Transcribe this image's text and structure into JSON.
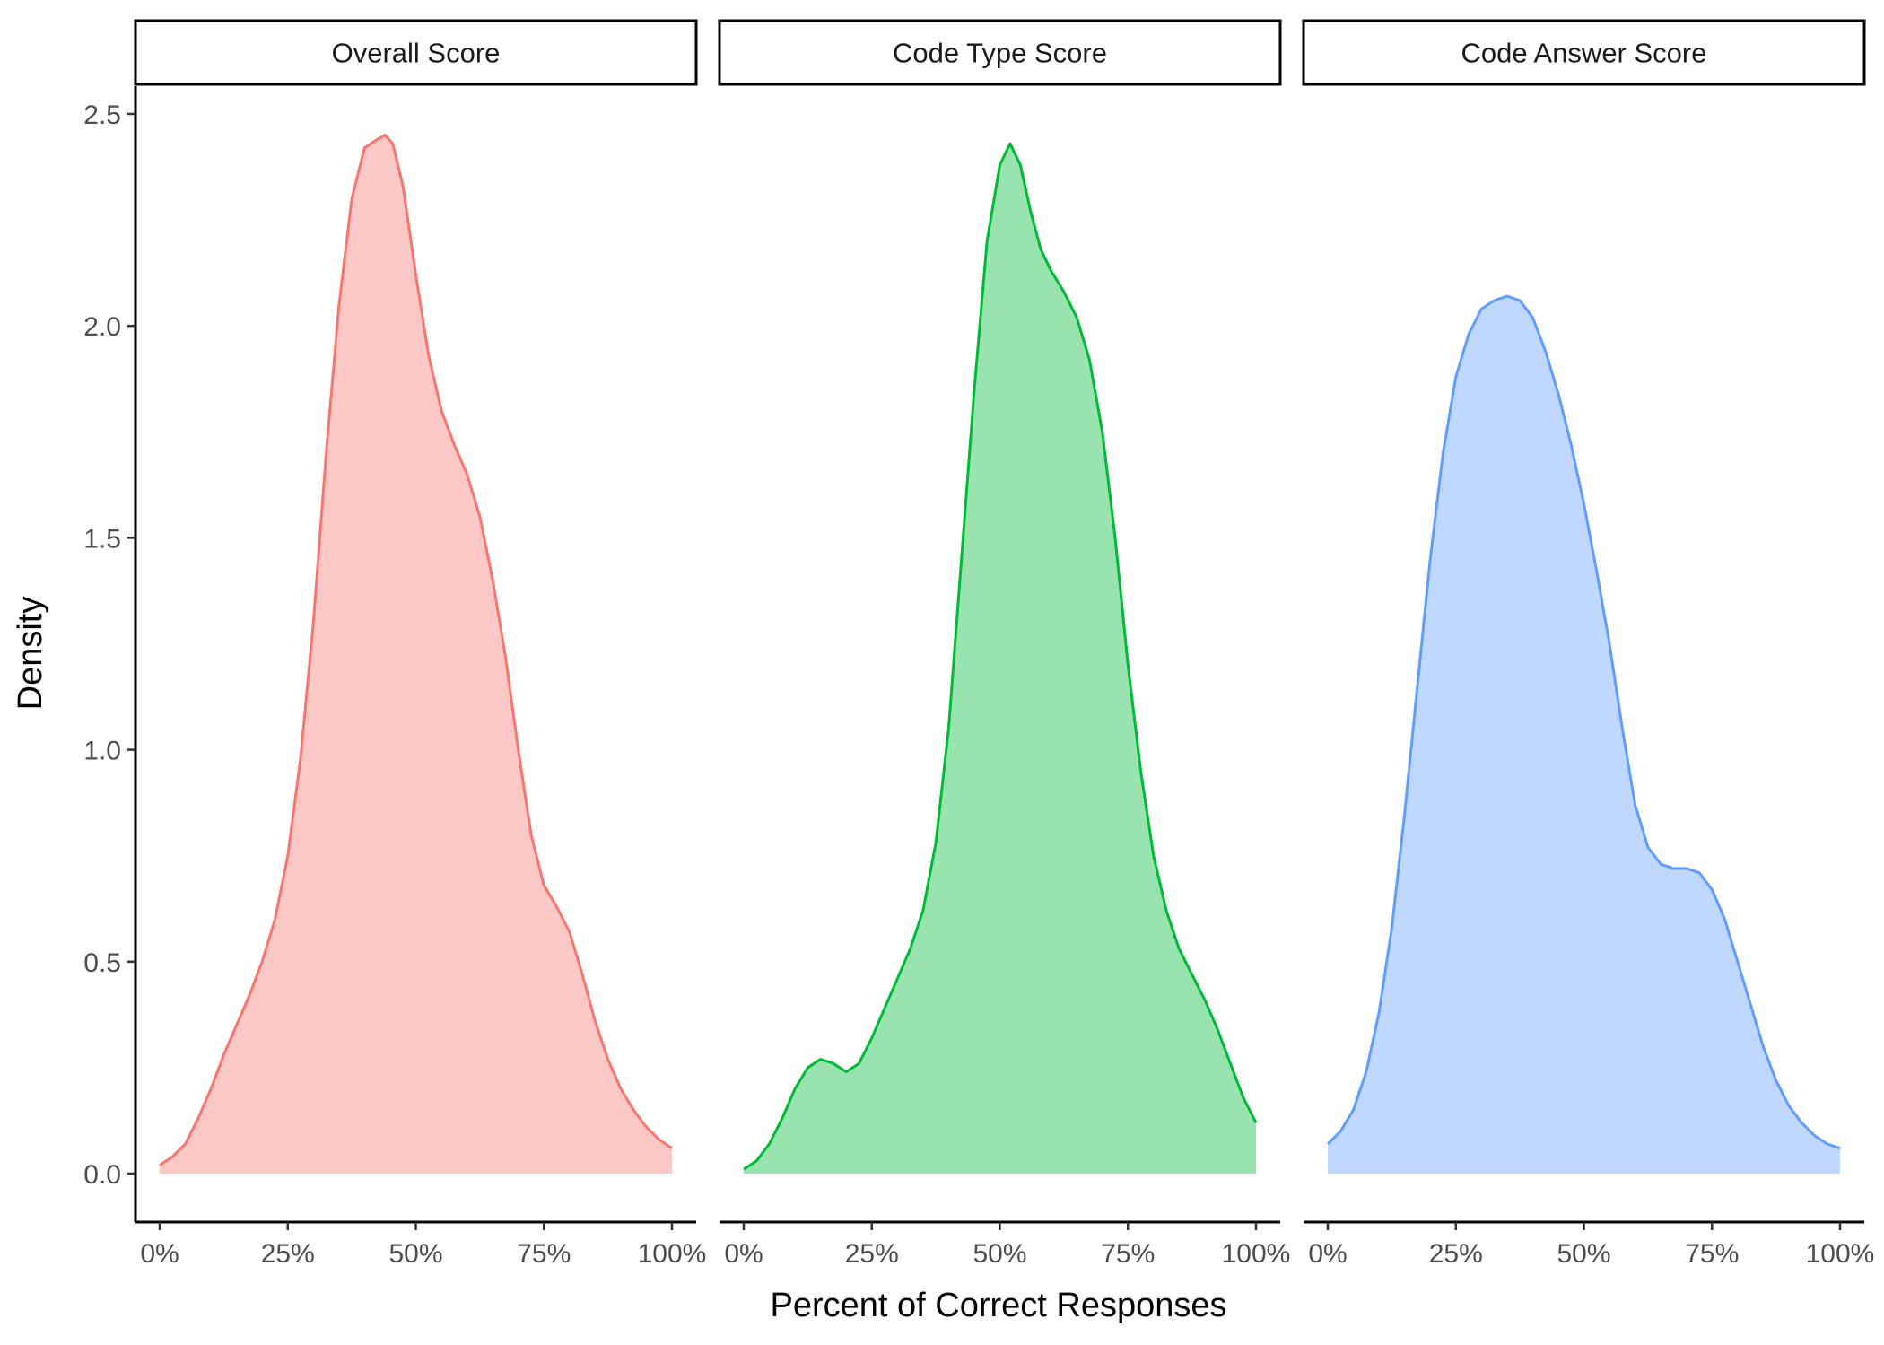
{
  "chart_data": {
    "type": "area",
    "xlabel": "Percent of Correct Responses",
    "ylabel": "Density",
    "xlim": [
      0,
      100
    ],
    "ylim": [
      0,
      2.5
    ],
    "x_ticks": [
      0,
      25,
      50,
      75,
      100
    ],
    "x_tick_labels": [
      "0%",
      "25%",
      "50%",
      "75%",
      "100%"
    ],
    "y_ticks": [
      0,
      0.5,
      1.0,
      1.5,
      2.0,
      2.5
    ],
    "y_tick_labels": [
      "0.0",
      "0.5",
      "1.0",
      "1.5",
      "2.0",
      "2.5"
    ],
    "grid": false,
    "legend": "none",
    "panels": [
      {
        "label": "Overall Score",
        "line_color": "#F8766D",
        "fill_color": "#F8766D",
        "x": [
          0,
          2.5,
          5,
          7.5,
          10,
          12.5,
          15,
          17.5,
          20,
          22.5,
          25,
          27.5,
          30,
          32.5,
          35,
          37.5,
          40,
          42.5,
          44,
          45.5,
          47.5,
          50,
          52.5,
          55,
          57.5,
          60,
          62.5,
          65,
          67.5,
          70,
          72.5,
          75,
          77.5,
          80,
          82.5,
          85,
          87.5,
          90,
          92.5,
          95,
          97.5,
          100
        ],
        "y": [
          0.02,
          0.04,
          0.07,
          0.13,
          0.2,
          0.28,
          0.35,
          0.42,
          0.5,
          0.6,
          0.75,
          0.98,
          1.3,
          1.7,
          2.05,
          2.3,
          2.42,
          2.44,
          2.45,
          2.43,
          2.33,
          2.12,
          1.93,
          1.8,
          1.72,
          1.65,
          1.55,
          1.4,
          1.22,
          1.0,
          0.8,
          0.68,
          0.63,
          0.57,
          0.47,
          0.36,
          0.27,
          0.2,
          0.15,
          0.11,
          0.08,
          0.06
        ]
      },
      {
        "label": "Code Type Score",
        "line_color": "#00BA38",
        "fill_color": "#00BA38",
        "x": [
          0,
          2.5,
          5,
          7.5,
          10,
          12.5,
          15,
          17.5,
          20,
          22.5,
          25,
          27.5,
          30,
          32.5,
          35,
          37.5,
          40,
          42.5,
          45,
          47.5,
          50,
          52,
          54,
          56,
          58,
          60,
          62.5,
          65,
          67.5,
          70,
          72.5,
          75,
          77.5,
          80,
          82.5,
          85,
          87.5,
          90,
          92.5,
          95,
          97.5,
          100
        ],
        "y": [
          0.01,
          0.03,
          0.07,
          0.13,
          0.2,
          0.25,
          0.27,
          0.26,
          0.24,
          0.26,
          0.32,
          0.39,
          0.46,
          0.53,
          0.62,
          0.78,
          1.05,
          1.45,
          1.85,
          2.2,
          2.38,
          2.43,
          2.38,
          2.27,
          2.18,
          2.13,
          2.08,
          2.02,
          1.92,
          1.75,
          1.5,
          1.2,
          0.95,
          0.75,
          0.62,
          0.53,
          0.47,
          0.41,
          0.34,
          0.26,
          0.18,
          0.12
        ]
      },
      {
        "label": "Code Answer Score",
        "line_color": "#619CFF",
        "fill_color": "#619CFF",
        "x": [
          0,
          2.5,
          5,
          7.5,
          10,
          12.5,
          15,
          17.5,
          20,
          22.5,
          25,
          27.5,
          30,
          32.5,
          35,
          37.5,
          40,
          42.5,
          45,
          47.5,
          50,
          52.5,
          55,
          57.5,
          60,
          62.5,
          65,
          67.5,
          70,
          72.5,
          75,
          77.5,
          80,
          82.5,
          85,
          87.5,
          90,
          92.5,
          95,
          97.5,
          100
        ],
        "y": [
          0.07,
          0.1,
          0.15,
          0.24,
          0.38,
          0.58,
          0.85,
          1.15,
          1.45,
          1.7,
          1.88,
          1.98,
          2.04,
          2.06,
          2.07,
          2.06,
          2.02,
          1.94,
          1.84,
          1.72,
          1.58,
          1.42,
          1.25,
          1.05,
          0.87,
          0.77,
          0.73,
          0.72,
          0.72,
          0.71,
          0.67,
          0.6,
          0.5,
          0.4,
          0.3,
          0.22,
          0.16,
          0.12,
          0.09,
          0.07,
          0.06
        ]
      }
    ]
  }
}
